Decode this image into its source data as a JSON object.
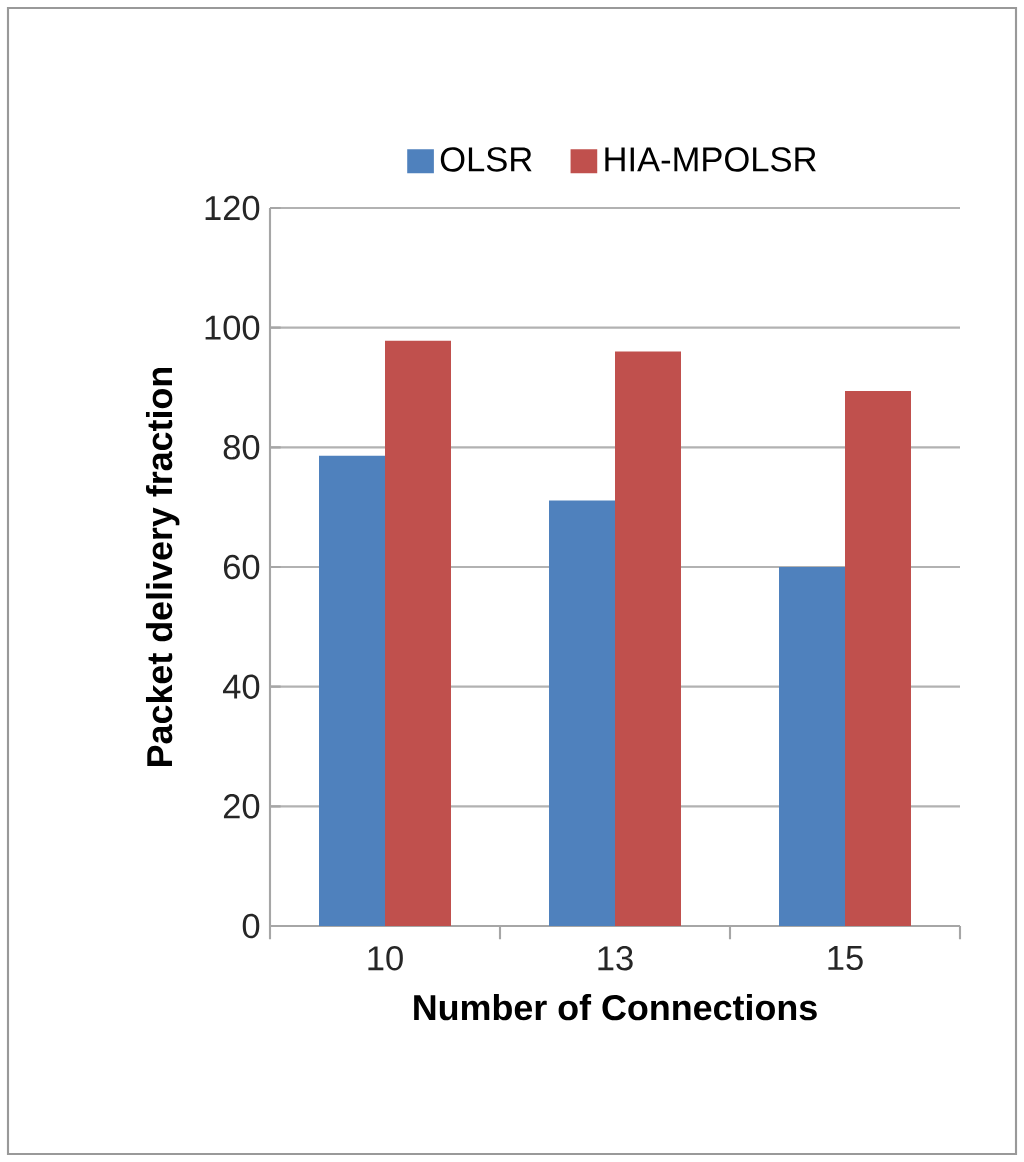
{
  "chart_data": {
    "type": "bar",
    "xlabel": "Number of Connections",
    "ylabel": "Packet delivery fraction",
    "categories": [
      "10",
      "13",
      "15"
    ],
    "series": [
      {
        "name": "OLSR",
        "color": "#4f81bd",
        "values": [
          78.6,
          71.1,
          60
        ]
      },
      {
        "name": "HIA-MPOLSR",
        "color": "#c0504d",
        "values": [
          97.8,
          96,
          89.4
        ]
      }
    ],
    "ylim": [
      0,
      120
    ],
    "yticks": [
      0,
      20,
      40,
      60,
      80,
      100,
      120
    ],
    "grid": "y",
    "legend": "top"
  }
}
